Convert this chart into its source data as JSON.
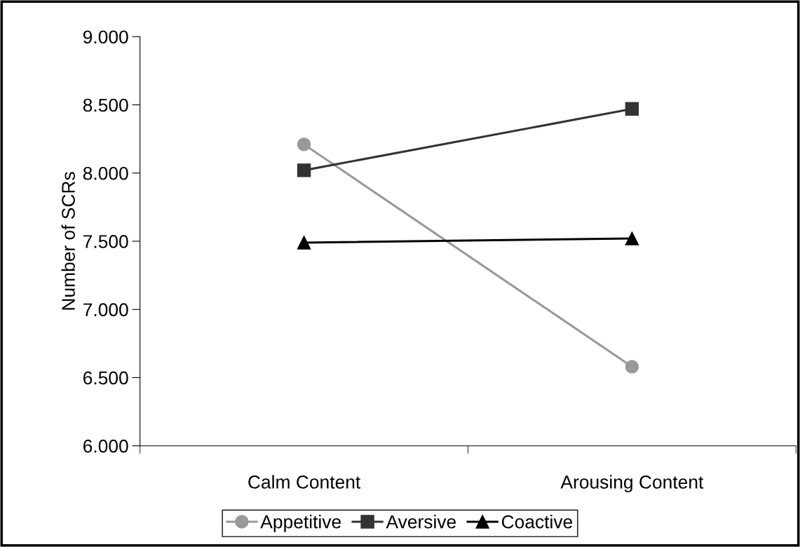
{
  "chart_data": {
    "type": "line",
    "ylabel": "Number of SCRs",
    "categories": [
      "Calm Content",
      "Arousing Content"
    ],
    "series": [
      {
        "name": "Appetitive",
        "color": "#999999",
        "marker": "circle",
        "values": [
          8.21,
          6.58
        ]
      },
      {
        "name": "Aversive",
        "color": "#333333",
        "marker": "square",
        "values": [
          8.02,
          8.47
        ]
      },
      {
        "name": "Coactive",
        "color": "#000000",
        "marker": "triangle",
        "values": [
          7.49,
          7.52
        ]
      }
    ],
    "ylim": [
      6,
      9
    ],
    "yticks": [
      {
        "value": 6,
        "label": "6.000"
      },
      {
        "value": 6.5,
        "label": "6.500"
      },
      {
        "value": 7,
        "label": "7.000"
      },
      {
        "value": 7.5,
        "label": "7.500"
      },
      {
        "value": 8,
        "label": "8.000"
      },
      {
        "value": 8.5,
        "label": "8.500"
      },
      {
        "value": 9,
        "label": "9.000"
      }
    ],
    "grid": false,
    "legend": "bottom",
    "line_style": "solid"
  }
}
